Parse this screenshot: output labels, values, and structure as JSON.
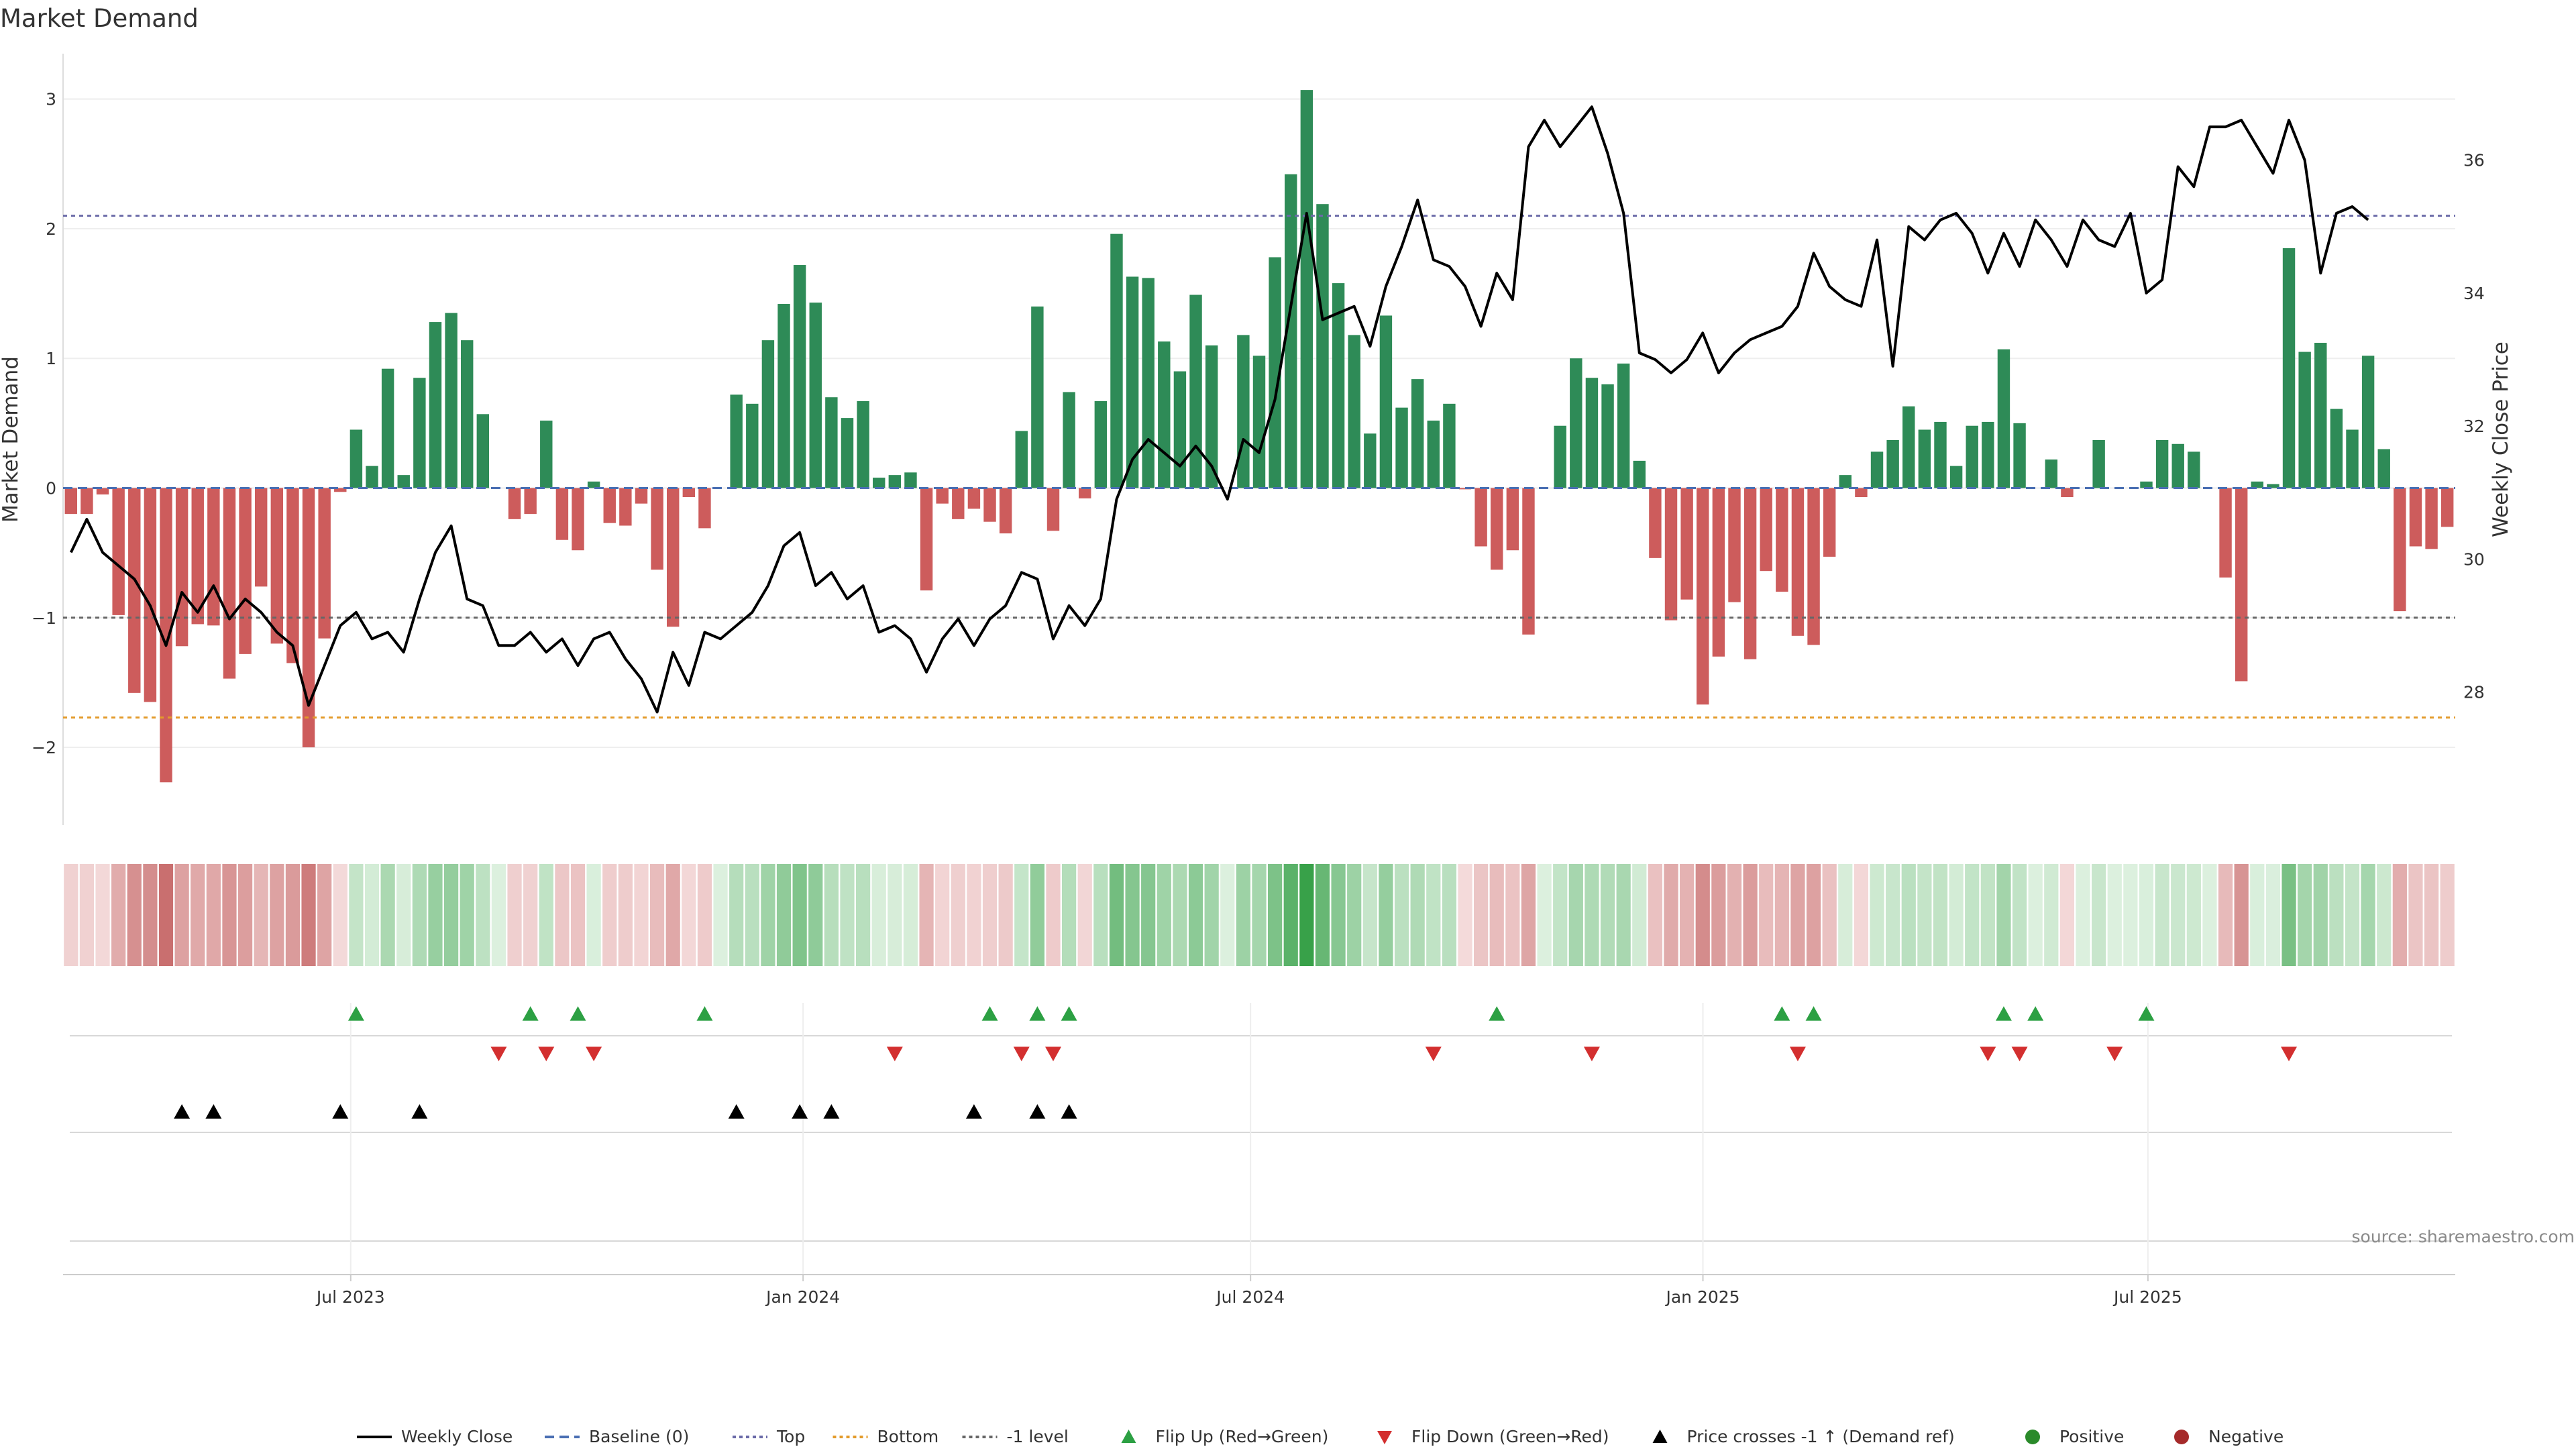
{
  "chart_data": {
    "type": "bar",
    "title": "Market Demand",
    "ylabel": "Market Demand",
    "y2label": "Weekly Close Price",
    "ylim": [
      -2.6,
      3.35
    ],
    "y2lim": [
      26.0,
      37.6
    ],
    "yticks": [
      3,
      2,
      1,
      0,
      -1,
      -2
    ],
    "ytick_labels": [
      "3",
      "2",
      "1",
      "0",
      "−1",
      "−2"
    ],
    "y2ticks": [
      36,
      34,
      32,
      30,
      28
    ],
    "x_start": "2023-03-06",
    "x_end": "2025-11-03",
    "xticks": [
      "2023-07-01",
      "2024-01-01",
      "2024-07-01",
      "2025-01-01",
      "2025-07-01"
    ],
    "xtick_labels": [
      "Jul 2023",
      "Jan 2024",
      "Jul 2024",
      "Jan 2025",
      "Jul 2025"
    ],
    "levels": {
      "top": 2.1,
      "bottom": -1.77,
      "minus_one": -1.0,
      "baseline": 0
    },
    "demand": [
      -0.2,
      -0.2,
      -0.05,
      -0.98,
      -1.58,
      -1.65,
      -2.27,
      -1.22,
      -1.05,
      -1.06,
      -1.47,
      -1.28,
      -0.76,
      -1.2,
      -1.35,
      -2.0,
      -1.16,
      -0.03,
      0.45,
      0.17,
      0.92,
      0.1,
      0.85,
      1.28,
      1.35,
      1.14,
      0.57,
      0.0,
      -0.24,
      -0.2,
      0.52,
      -0.4,
      -0.48,
      0.05,
      -0.27,
      -0.29,
      -0.12,
      -0.63,
      -1.07,
      -0.07,
      -0.31,
      0.0,
      0.72,
      0.65,
      1.14,
      1.42,
      1.72,
      1.43,
      0.7,
      0.54,
      0.67,
      0.08,
      0.1,
      0.12,
      -0.79,
      -0.12,
      -0.24,
      -0.16,
      -0.26,
      -0.35,
      0.44,
      1.4,
      -0.33,
      0.74,
      -0.08,
      0.67,
      1.96,
      1.63,
      1.62,
      1.13,
      0.9,
      1.49,
      1.1,
      0.0,
      1.18,
      1.02,
      1.78,
      2.42,
      3.07,
      2.19,
      1.58,
      1.18,
      0.42,
      1.33,
      0.62,
      0.84,
      0.52,
      0.65,
      -0.01,
      -0.45,
      -0.63,
      -0.48,
      -1.13,
      0.0,
      0.48,
      1.0,
      0.85,
      0.8,
      0.96,
      0.21,
      -0.54,
      -1.02,
      -0.86,
      -1.67,
      -1.3,
      -0.88,
      -1.32,
      -0.64,
      -0.8,
      -1.14,
      -1.21,
      -0.53,
      0.1,
      -0.07,
      0.28,
      0.37,
      0.63,
      0.45,
      0.51,
      0.17,
      0.48,
      0.51,
      1.07,
      0.5,
      0.0,
      0.22,
      -0.07,
      0.0,
      0.37,
      0.0,
      0.0,
      0.05,
      0.37,
      0.34,
      0.28,
      0.0,
      -0.69,
      -1.49,
      0.05,
      0.03,
      1.85,
      1.05,
      1.12,
      0.61,
      0.45,
      1.02,
      0.3,
      -0.95,
      -0.45,
      -0.47,
      -0.3
    ],
    "price": [
      30.1,
      30.6,
      30.1,
      29.9,
      29.7,
      29.3,
      28.7,
      29.5,
      29.2,
      29.6,
      29.1,
      29.4,
      29.2,
      28.9,
      28.7,
      27.8,
      28.4,
      29.0,
      29.2,
      28.8,
      28.9,
      28.6,
      29.4,
      30.1,
      30.5,
      29.4,
      29.3,
      28.7,
      28.7,
      28.9,
      28.6,
      28.8,
      28.4,
      28.8,
      28.9,
      28.5,
      28.2,
      27.7,
      28.6,
      28.1,
      28.9,
      28.8,
      29.0,
      29.2,
      29.6,
      30.2,
      30.4,
      29.6,
      29.8,
      29.4,
      29.6,
      28.9,
      29.0,
      28.8,
      28.3,
      28.8,
      29.1,
      28.7,
      29.1,
      29.3,
      29.8,
      29.7,
      28.8,
      29.3,
      29.0,
      29.4,
      30.9,
      31.5,
      31.8,
      31.6,
      31.4,
      31.7,
      31.4,
      30.9,
      31.8,
      31.6,
      32.4,
      33.8,
      35.2,
      33.6,
      33.7,
      33.8,
      33.2,
      34.1,
      34.7,
      35.4,
      34.5,
      34.4,
      34.1,
      33.5,
      34.3,
      33.9,
      36.2,
      36.6,
      36.2,
      36.5,
      36.8,
      36.1,
      35.2,
      33.1,
      33.0,
      32.8,
      33.0,
      33.4,
      32.8,
      33.1,
      33.3,
      33.4,
      33.5,
      33.8,
      34.6,
      34.1,
      33.9,
      33.8,
      34.8,
      32.9,
      35.0,
      34.8,
      35.1,
      35.2,
      34.9,
      34.3,
      34.9,
      34.4,
      35.1,
      34.8,
      34.4,
      35.1,
      34.8,
      34.7,
      35.2,
      34.0,
      34.2,
      35.9,
      35.6,
      36.5,
      36.5,
      36.6,
      36.2,
      35.8,
      36.6,
      36.0,
      34.3,
      35.2,
      35.3,
      35.1
    ],
    "marker_rows": {
      "flip_up": [
        18,
        29,
        32,
        40,
        58,
        61,
        63,
        90,
        108,
        110,
        122,
        124,
        131
      ],
      "flip_down": [
        27,
        30,
        33,
        52,
        60,
        62,
        86,
        96,
        109,
        121,
        123,
        129,
        140
      ],
      "price_cross": [
        7,
        9,
        17,
        22,
        42,
        46,
        48,
        57,
        61,
        63
      ]
    },
    "legend": [
      {
        "key": "weekly_close",
        "label": "Weekly Close",
        "style": "line",
        "color": "#000000"
      },
      {
        "key": "baseline",
        "label": "Baseline (0)",
        "style": "dash",
        "color": "#4a6fb3"
      },
      {
        "key": "top",
        "label": "Top",
        "style": "dot",
        "color": "#6a6aa8"
      },
      {
        "key": "bottom",
        "label": "Bottom",
        "style": "dot",
        "color": "#e39b2b"
      },
      {
        "key": "minus_one",
        "label": "-1 level",
        "style": "dot",
        "color": "#666666"
      },
      {
        "key": "flip_up",
        "label": "Flip Up (Red→Green)",
        "style": "tri-up",
        "color": "#2ca043"
      },
      {
        "key": "flip_down",
        "label": "Flip Down (Green→Red)",
        "style": "tri-down",
        "color": "#d32f2f"
      },
      {
        "key": "price_cross",
        "label": "Price crosses -1 ↑ (Demand ref)",
        "style": "tri-up",
        "color": "#000000"
      },
      {
        "key": "positive",
        "label": "Positive",
        "style": "circle",
        "color": "#2a8a2a"
      },
      {
        "key": "negative",
        "label": "Negative",
        "style": "circle",
        "color": "#a52a2a"
      }
    ],
    "source": "source: sharemaestro.com",
    "colors": {
      "positive_bar": "#2e8b57",
      "negative_bar": "#cd5c5c",
      "price_line": "#000000"
    }
  }
}
